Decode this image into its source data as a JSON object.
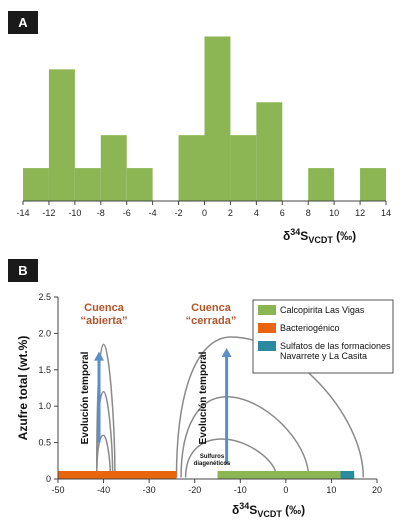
{
  "chart_data": [
    {
      "type": "bar",
      "panel_label": "A",
      "bin_edges": [
        -14,
        -12,
        -10,
        -8,
        -6,
        -4,
        -2,
        0,
        2,
        4,
        6,
        8,
        10,
        12,
        14
      ],
      "bin_left": [
        -14,
        -12,
        -10,
        -8,
        -6,
        -4,
        -2,
        0,
        2,
        4,
        6,
        8,
        10,
        12
      ],
      "values": [
        1,
        4,
        1,
        2,
        1,
        0,
        2,
        5,
        2,
        3,
        0,
        1,
        0,
        1
      ],
      "xlim": [
        -14,
        14
      ],
      "ylim": [
        0,
        5.5
      ],
      "xticks": [
        "-14",
        "-12",
        "-10",
        "-8",
        "-6",
        "-4",
        "-2",
        "0",
        "2",
        "4",
        "6",
        "8",
        "10",
        "12",
        "14"
      ],
      "xlabel": {
        "prefix": "δ",
        "sup": "34",
        "main": "S",
        "sub": "VCDT",
        "suffix": " (‰)"
      },
      "bar_color": "#8cb653"
    },
    {
      "type": "line",
      "panel_label": "B",
      "xlim": [
        -50,
        20
      ],
      "ylim": [
        0,
        2.5
      ],
      "xticks": [
        "-50",
        "-40",
        "-30",
        "-20",
        "-10",
        "0",
        "10",
        "20"
      ],
      "yticks": [
        "0",
        "0.5",
        "1.0",
        "1.5",
        "2.0",
        "2.5"
      ],
      "ylabel": "Azufre total (wt.%)",
      "xlabel": {
        "prefix": "δ",
        "sup": "34",
        "main": "S",
        "suffix": " (‰)",
        "sub": "VCDT"
      },
      "ranges": [
        {
          "name": "Bacteriogénico",
          "x": [
            -50,
            -24
          ],
          "color": "#e8650e"
        },
        {
          "name": "Calcopirita Las Vigas",
          "x": [
            -15,
            12
          ],
          "color": "#8cb653"
        },
        {
          "name": "Sulfatos de las formaciones Navarrete y La Casita",
          "x": [
            12,
            15
          ],
          "color": "#2a8aa0"
        }
      ],
      "open_basin_curves": [
        {
          "x0": -41.5,
          "x1": -37.5,
          "peak_x": -40,
          "peak": 1.85
        },
        {
          "x0": -41.5,
          "x1": -38,
          "peak_x": -40,
          "peak": 1.2
        },
        {
          "x0": -41.5,
          "x1": -38.5,
          "peak_x": -40,
          "peak": 0.6
        }
      ],
      "closed_basin_curves": [
        {
          "x0": -24,
          "x1": 17,
          "peak_x": -12,
          "peak": 1.95
        },
        {
          "x0": -23,
          "x1": 5,
          "peak_x": -13,
          "peak": 1.13
        },
        {
          "x0": -22,
          "x1": -2,
          "peak_x": -14,
          "peak": 0.55
        }
      ],
      "arrows": [
        {
          "x": -41,
          "y_from": 0.5,
          "y_to": 1.75
        },
        {
          "x": -13,
          "y_from": 0.2,
          "y_to": 1.8
        }
      ],
      "annotations": {
        "open_basin": [
          "Cuenca",
          "“abierta”"
        ],
        "closed_basin": [
          "Cuenca",
          "“cerrada”"
        ],
        "temporal_evolution": "Evolución temporal",
        "diagenetic": [
          "Sulfuros",
          "diagenéticos"
        ]
      },
      "legend": {
        "placement": "top-right"
      }
    }
  ]
}
